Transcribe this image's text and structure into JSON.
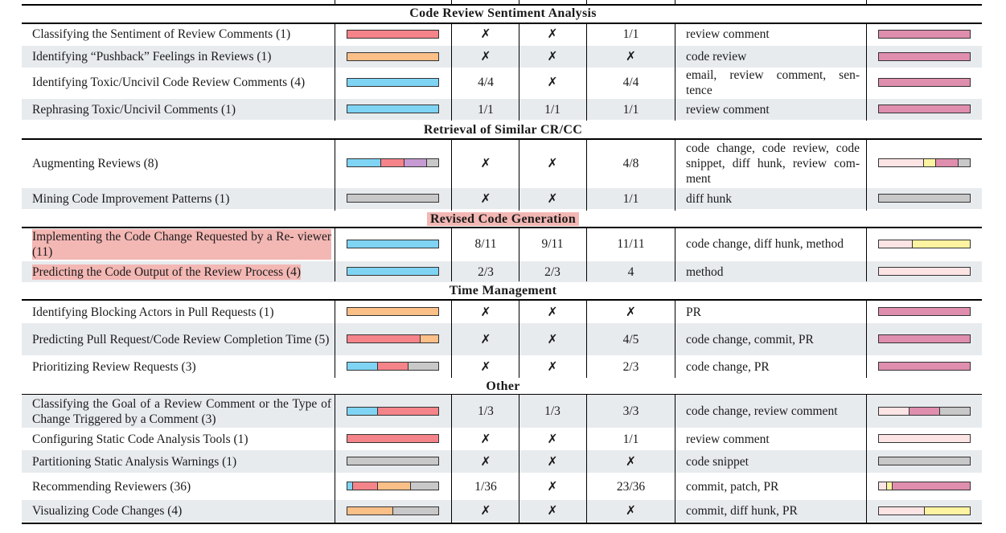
{
  "colors": {
    "red": "#f4848a",
    "orange": "#fbbf88",
    "blue": "#7fd4f4",
    "purple": "#c69ad2",
    "gray": "#c8c8c8",
    "pink": "#df8eae",
    "lightpink": "#fde4e4",
    "yellow": "#fdf3a0"
  },
  "symbols": {
    "cross": "✗"
  },
  "sections": [
    {
      "title": "Code Review Sentiment Analysis",
      "highlight": false,
      "rows": [
        {
          "name": "Classifying the Sentiment of Review Comments (1)",
          "c1": "✗",
          "c2": "✗",
          "c3": "1/1",
          "artifacts": "review comment",
          "shaded": false
        },
        {
          "name": "Identifying “Pushback” Feelings in Reviews (1)",
          "c1": "✗",
          "c2": "✗",
          "c3": "✗",
          "artifacts": "code review",
          "shaded": true
        },
        {
          "name": "Identifying Toxic/Uncivil Code Review Comments (4)",
          "c1": "4/4",
          "c2": "✗",
          "c3": "4/4",
          "artifacts": "email, review comment, sen- tence",
          "shaded": false
        },
        {
          "name": "Rephrasing Toxic/Uncivil Comments (1)",
          "c1": "1/1",
          "c2": "1/1",
          "c3": "1/1",
          "artifacts": "review comment",
          "shaded": true
        }
      ]
    },
    {
      "title": "Retrieval of Similar CR/CC",
      "highlight": false,
      "rows": [
        {
          "name": "Augmenting Reviews (8)",
          "c1": "✗",
          "c2": "✗",
          "c3": "4/8",
          "artifacts": "code change, code review, code snippet, diff hunk, review com- ment",
          "shaded": false
        },
        {
          "name": "Mining Code Improvement Patterns (1)",
          "c1": "✗",
          "c2": "✗",
          "c3": "1/1",
          "artifacts": "diff hunk",
          "shaded": true
        }
      ]
    },
    {
      "title": "Revised Code Generation",
      "highlight": true,
      "rows": [
        {
          "name": "Implementing the Code Change Requested by a Re- viewer (11)",
          "c1": "8/11",
          "c2": "9/11",
          "c3": "11/11",
          "artifacts": "code change, diff hunk, method",
          "shaded": false,
          "highlight": true
        },
        {
          "name": "Predicting the Code Output of the Review Process (4)",
          "c1": "2/3",
          "c2": "2/3",
          "c3": "4",
          "artifacts": "method",
          "shaded": true,
          "highlight": true
        }
      ]
    },
    {
      "title": "Time Management",
      "highlight": false,
      "rows": [
        {
          "name": "Identifying Blocking Actors in Pull Requests (1)",
          "c1": "✗",
          "c2": "✗",
          "c3": "✗",
          "artifacts": "PR",
          "shaded": false
        },
        {
          "name": "Predicting Pull Request/Code Review Completion Time (5)",
          "c1": "✗",
          "c2": "✗",
          "c3": "4/5",
          "artifacts": "code change, commit, PR",
          "shaded": true
        },
        {
          "name": "Prioritizing Review Requests (3)",
          "c1": "✗",
          "c2": "✗",
          "c3": "2/3",
          "artifacts": "code change, PR",
          "shaded": false
        }
      ]
    },
    {
      "title": "Other",
      "highlight": false,
      "rows": [
        {
          "name": "Classifying the Goal of a Review Comment or the Type of Change Triggered by a Comment (3)",
          "c1": "1/3",
          "c2": "1/3",
          "c3": "3/3",
          "artifacts": "code change, review comment",
          "shaded": true
        },
        {
          "name": "Configuring Static Code Analysis Tools (1)",
          "c1": "✗",
          "c2": "✗",
          "c3": "1/1",
          "artifacts": "review comment",
          "shaded": false
        },
        {
          "name": "Partitioning Static Analysis Warnings (1)",
          "c1": "✗",
          "c2": "✗",
          "c3": "✗",
          "artifacts": "code snippet",
          "shaded": true
        },
        {
          "name": "Recommending Reviewers (36)",
          "c1": "1/36",
          "c2": "✗",
          "c3": "23/36",
          "artifacts": "commit, patch, PR",
          "shaded": false
        },
        {
          "name": "Visualizing Code Changes (4)",
          "c1": "✗",
          "c2": "✗",
          "c3": "✗",
          "artifacts": "commit, diff hunk, PR",
          "shaded": true
        }
      ]
    }
  ],
  "bars1": [
    [
      [
        "red",
        1
      ]
    ],
    [
      [
        "orange",
        1
      ]
    ],
    [
      [
        "blue",
        1
      ]
    ],
    [
      [
        "blue",
        1
      ]
    ],
    [
      [
        "blue",
        0.375
      ],
      [
        "red",
        0.25
      ],
      [
        "purple",
        0.25
      ],
      [
        "gray",
        0.125
      ]
    ],
    [
      [
        "gray",
        1
      ]
    ],
    [
      [
        "blue",
        1
      ]
    ],
    [
      [
        "blue",
        1
      ]
    ],
    [
      [
        "orange",
        1
      ]
    ],
    [
      [
        "red",
        0.8
      ],
      [
        "orange",
        0.2
      ]
    ],
    [
      [
        "blue",
        0.333
      ],
      [
        "red",
        0.333
      ],
      [
        "gray",
        0.334
      ]
    ],
    [
      [
        "blue",
        0.333
      ],
      [
        "red",
        0.667
      ]
    ],
    [
      [
        "red",
        1
      ]
    ],
    [
      [
        "gray",
        1
      ]
    ],
    [
      [
        "blue",
        0.05
      ],
      [
        "red",
        0.28
      ],
      [
        "orange",
        0.36
      ],
      [
        "gray",
        0.31
      ]
    ],
    [
      [
        "orange",
        0.5
      ],
      [
        "gray",
        0.5
      ]
    ]
  ],
  "bars2": [
    [
      [
        "pink",
        1
      ]
    ],
    [
      [
        "pink",
        1
      ]
    ],
    [
      [
        "pink",
        1
      ]
    ],
    [
      [
        "pink",
        1
      ]
    ],
    [
      [
        "lightpink",
        0.5
      ],
      [
        "yellow",
        0.125
      ],
      [
        "pink",
        0.25
      ],
      [
        "gray",
        0.125
      ]
    ],
    [
      [
        "gray",
        1
      ]
    ],
    [
      [
        "lightpink",
        0.364
      ],
      [
        "yellow",
        0.636
      ]
    ],
    [
      [
        "lightpink",
        1
      ]
    ],
    [
      [
        "pink",
        1
      ]
    ],
    [
      [
        "pink",
        1
      ]
    ],
    [
      [
        "pink",
        1
      ]
    ],
    [
      [
        "lightpink",
        0.333
      ],
      [
        "pink",
        0.333
      ],
      [
        "gray",
        0.334
      ]
    ],
    [
      [
        "lightpink",
        1
      ]
    ],
    [
      [
        "gray",
        1
      ]
    ],
    [
      [
        "lightpink",
        0.083
      ],
      [
        "yellow",
        0.056
      ],
      [
        "pink",
        0.861
      ]
    ],
    [
      [
        "lightpink",
        0.5
      ],
      [
        "yellow",
        0.5
      ]
    ]
  ]
}
